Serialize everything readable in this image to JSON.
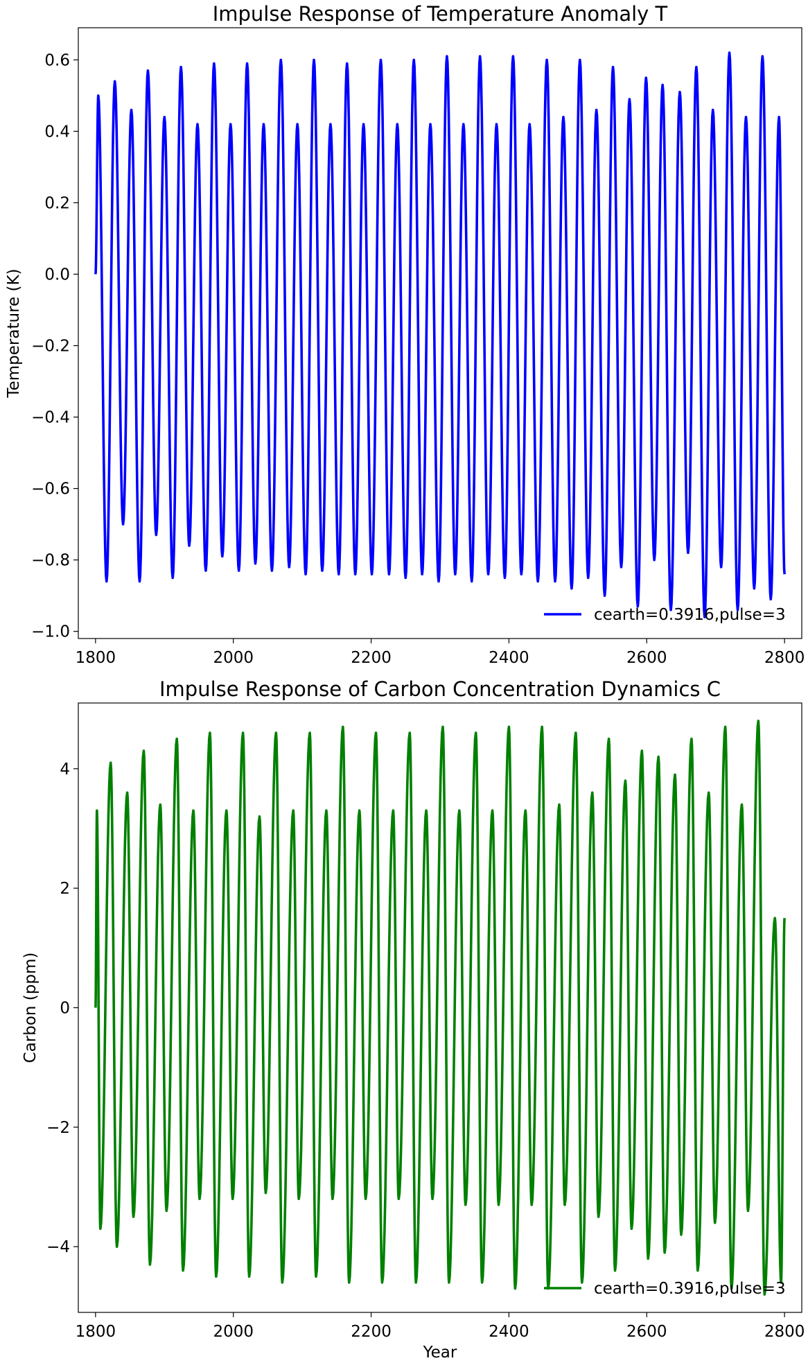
{
  "chart_data": [
    {
      "type": "line",
      "title": "Impulse Response of Temperature Anomaly T",
      "xlabel": "",
      "ylabel": "Temperature (K)",
      "xlim": [
        1775,
        2825
      ],
      "ylim": [
        -1.02,
        0.69
      ],
      "xticks": [
        1800,
        2000,
        2200,
        2400,
        2600,
        2800
      ],
      "yticks": [
        -1.0,
        -0.8,
        -0.6,
        -0.4,
        -0.2,
        0.0,
        0.2,
        0.4,
        0.6
      ],
      "ytick_labels": [
        "−1.0",
        "−0.8",
        "−0.6",
        "−0.4",
        "−0.2",
        "0.0",
        "0.2",
        "0.4",
        "0.6"
      ],
      "legend": "lower-right",
      "grid": false,
      "series": [
        {
          "name": "cearth=0.3916,pulse=3",
          "color": "#0000ff",
          "x_start": 1800,
          "x_end": 2800,
          "start_value": 0.0,
          "end_value": -0.84,
          "peaks_x": [
            1804,
            1828,
            1852,
            1876,
            1900,
            1924,
            1948,
            1972,
            1996,
            2020,
            2044,
            2069,
            2093,
            2117,
            2141,
            2165,
            2189,
            2214,
            2238,
            2262,
            2286,
            2310,
            2334,
            2358,
            2382,
            2406,
            2430,
            2455,
            2479,
            2503,
            2527,
            2551,
            2575,
            2599,
            2623,
            2648,
            2672,
            2696,
            2720,
            2744,
            2768,
            2792
          ],
          "peaks_y": [
            0.5,
            0.54,
            0.46,
            0.57,
            0.44,
            0.58,
            0.42,
            0.59,
            0.42,
            0.59,
            0.42,
            0.6,
            0.42,
            0.6,
            0.42,
            0.59,
            0.42,
            0.6,
            0.42,
            0.6,
            0.42,
            0.61,
            0.42,
            0.61,
            0.42,
            0.61,
            0.42,
            0.6,
            0.44,
            0.6,
            0.46,
            0.58,
            0.49,
            0.55,
            0.53,
            0.51,
            0.58,
            0.46,
            0.62,
            0.44,
            0.61,
            0.44
          ],
          "troughs_x": [
            1816,
            1840,
            1864,
            1888,
            1912,
            1936,
            1960,
            1984,
            2008,
            2032,
            2056,
            2081,
            2105,
            2129,
            2153,
            2177,
            2201,
            2226,
            2250,
            2274,
            2298,
            2322,
            2346,
            2370,
            2394,
            2418,
            2442,
            2467,
            2491,
            2515,
            2539,
            2563,
            2587,
            2611,
            2635,
            2660,
            2684,
            2708,
            2732,
            2756,
            2780
          ],
          "troughs_y": [
            -0.86,
            -0.7,
            -0.86,
            -0.73,
            -0.85,
            -0.76,
            -0.83,
            -0.79,
            -0.83,
            -0.81,
            -0.83,
            -0.82,
            -0.84,
            -0.83,
            -0.84,
            -0.84,
            -0.84,
            -0.84,
            -0.85,
            -0.84,
            -0.86,
            -0.84,
            -0.86,
            -0.84,
            -0.85,
            -0.84,
            -0.86,
            -0.86,
            -0.88,
            -0.85,
            -0.9,
            -0.82,
            -0.93,
            -0.8,
            -0.94,
            -0.78,
            -0.96,
            -0.82,
            -0.94,
            -0.88,
            -0.91
          ]
        }
      ]
    },
    {
      "type": "line",
      "title": "Impulse Response of Carbon Concentration Dynamics C",
      "xlabel": "Year",
      "ylabel": "Carbon (ppm)",
      "xlim": [
        1775,
        2825
      ],
      "ylim": [
        -5.1,
        5.1
      ],
      "xticks": [
        1800,
        2000,
        2200,
        2400,
        2600,
        2800
      ],
      "yticks": [
        -4,
        -2,
        0,
        2,
        4
      ],
      "ytick_labels": [
        "−4",
        "−2",
        "0",
        "2",
        "4"
      ],
      "legend": "lower-right",
      "grid": false,
      "series": [
        {
          "name": "cearth=0.3916,pulse=3",
          "color": "#008000",
          "x_start": 1800,
          "x_end": 2800,
          "start_value": 0.0,
          "end_value": 1.5,
          "peaks_x": [
            1802,
            1822,
            1846,
            1870,
            1894,
            1918,
            1942,
            1966,
            1990,
            2014,
            2038,
            2062,
            2087,
            2111,
            2135,
            2159,
            2183,
            2207,
            2232,
            2256,
            2280,
            2304,
            2328,
            2352,
            2376,
            2400,
            2424,
            2448,
            2473,
            2497,
            2521,
            2545,
            2569,
            2593,
            2617,
            2641,
            2665,
            2690,
            2714,
            2738,
            2762,
            2786
          ],
          "peaks_y": [
            3.3,
            4.1,
            3.6,
            4.3,
            3.4,
            4.5,
            3.3,
            4.6,
            3.3,
            4.6,
            3.2,
            4.6,
            3.3,
            4.6,
            3.3,
            4.7,
            3.3,
            4.6,
            3.3,
            4.6,
            3.3,
            4.7,
            3.3,
            4.6,
            3.3,
            4.7,
            3.3,
            4.7,
            3.4,
            4.6,
            3.6,
            4.5,
            3.8,
            4.3,
            4.2,
            3.9,
            4.5,
            3.6,
            4.7,
            3.4,
            4.8,
            1.5
          ],
          "troughs_x": [
            1807,
            1831,
            1855,
            1879,
            1903,
            1927,
            1951,
            1975,
            1999,
            2023,
            2047,
            2071,
            2095,
            2120,
            2144,
            2168,
            2192,
            2216,
            2240,
            2265,
            2289,
            2313,
            2337,
            2361,
            2385,
            2409,
            2433,
            2457,
            2481,
            2506,
            2530,
            2554,
            2578,
            2602,
            2626,
            2650,
            2674,
            2699,
            2723,
            2747,
            2771,
            2795
          ],
          "troughs_y": [
            -3.7,
            -4.0,
            -3.5,
            -4.3,
            -3.4,
            -4.4,
            -3.2,
            -4.5,
            -3.2,
            -4.5,
            -3.1,
            -4.6,
            -3.2,
            -4.5,
            -3.2,
            -4.6,
            -3.2,
            -4.6,
            -3.2,
            -4.6,
            -3.2,
            -4.6,
            -3.3,
            -4.6,
            -3.3,
            -4.7,
            -3.3,
            -4.7,
            -3.3,
            -4.6,
            -3.5,
            -4.4,
            -3.7,
            -4.2,
            -4.1,
            -3.8,
            -4.4,
            -3.6,
            -4.7,
            -3.4,
            -4.8,
            -4.6
          ]
        }
      ]
    }
  ]
}
